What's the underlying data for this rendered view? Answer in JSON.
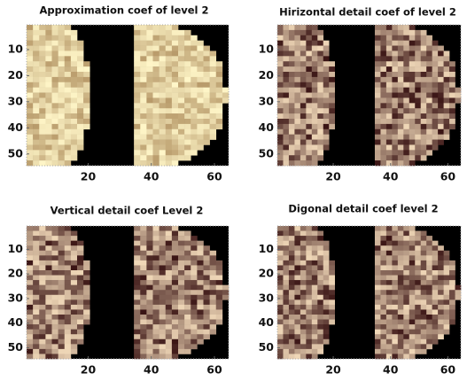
{
  "chart_data": [
    {
      "type": "image",
      "title": "Approximation coef of level 2",
      "xlim": [
        0.5,
        64.5
      ],
      "ylim": [
        0.5,
        54.5
      ],
      "xticks": [
        20,
        40,
        60
      ],
      "yticks": [
        10,
        20,
        30,
        40,
        50
      ],
      "background": "#000000",
      "palette": [
        "#b89a6a",
        "#fff6c8"
      ]
    },
    {
      "type": "image",
      "title": "Hirizontal detail coef of level 2",
      "xlim": [
        0.5,
        64.5
      ],
      "ylim": [
        0.5,
        54.5
      ],
      "xticks": [
        20,
        40,
        60
      ],
      "yticks": [
        10,
        20,
        30,
        40,
        50
      ],
      "background": "#000000",
      "palette": [
        "#3a1414",
        "#f0d8b8"
      ]
    },
    {
      "type": "image",
      "title": "Vertical detail coef Level  2",
      "xlim": [
        0.5,
        64.5
      ],
      "ylim": [
        0.5,
        54.5
      ],
      "xticks": [
        20,
        40,
        60
      ],
      "yticks": [
        10,
        20,
        30,
        40,
        50
      ],
      "background": "#000000",
      "palette": [
        "#3a1414",
        "#f0d8b8"
      ]
    },
    {
      "type": "image",
      "title": "Digonal detail coef level  2",
      "xlim": [
        0.5,
        64.5
      ],
      "ylim": [
        0.5,
        54.5
      ],
      "xticks": [
        20,
        40,
        60
      ],
      "yticks": [
        10,
        20,
        30,
        40,
        50
      ],
      "background": "#000000",
      "palette": [
        "#3a1414",
        "#f0d8b8"
      ]
    }
  ]
}
